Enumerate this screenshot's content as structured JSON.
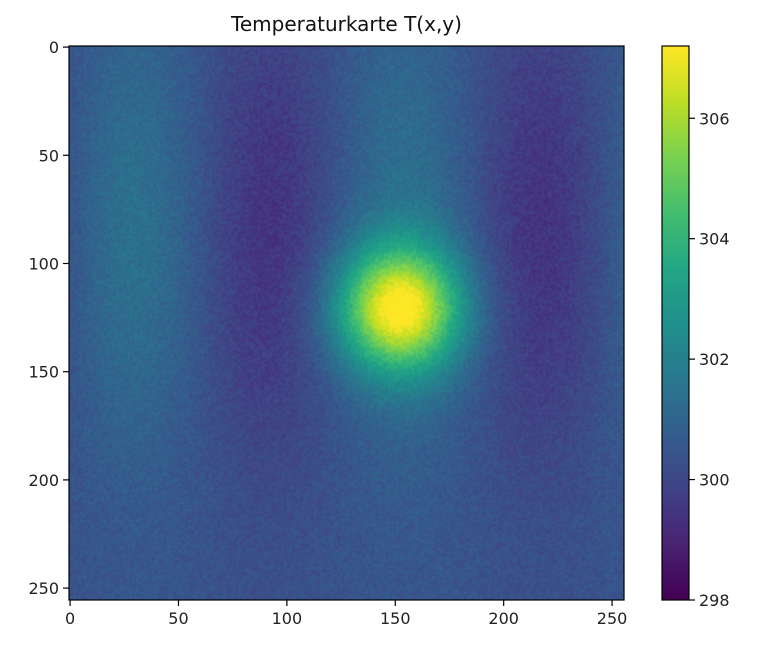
{
  "chart_data": {
    "type": "heatmap",
    "title": "Temperaturkarte T(x,y)",
    "xlabel": "",
    "ylabel": "",
    "grid_size": [
      256,
      256
    ],
    "xlim": [
      0,
      255
    ],
    "ylim": [
      255,
      0
    ],
    "x_ticks": [
      0,
      50,
      100,
      150,
      200,
      250
    ],
    "y_ticks": [
      0,
      50,
      100,
      150,
      200,
      250
    ],
    "colormap": "viridis",
    "colorbar": {
      "range": [
        298.0,
        307.2
      ],
      "ticks": [
        298,
        300,
        302,
        304,
        306
      ],
      "placement": "right"
    },
    "field_model": {
      "baseline": 300.4,
      "stripes": {
        "amplitude": 1.0,
        "x_period": 125,
        "y_period": 340,
        "cold_at_x": [
          92,
          218
        ],
        "cold_at_y": [
          85,
          250
        ]
      },
      "hotspot": {
        "center_x": 152,
        "center_y": 121,
        "peak_temperature": 306.8,
        "width": 20
      },
      "noise_amplitude": 0.35
    }
  }
}
